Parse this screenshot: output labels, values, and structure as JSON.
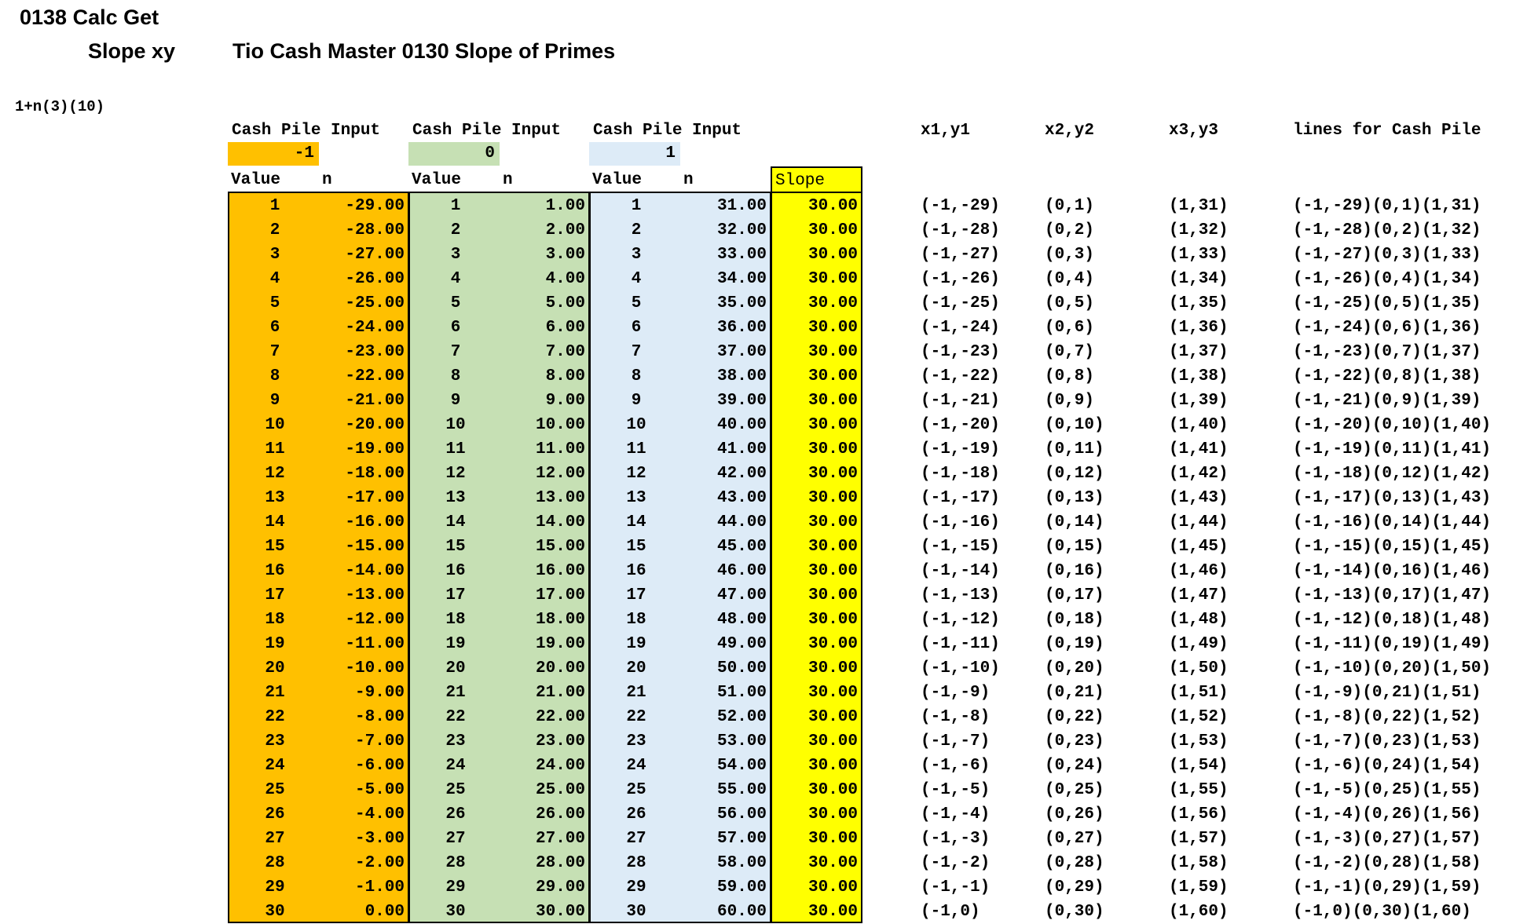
{
  "header": {
    "line1": "0138 Calc Get",
    "line2": "Slope xy",
    "line3": "Tio Cash Master 0130 Slope of Primes",
    "formula": "1+n(3)(10)"
  },
  "colors": {
    "orange": "#ffc000",
    "green": "#c6e0b4",
    "blue": "#ddebf7",
    "yellow": "#ffff00"
  },
  "inputs": [
    {
      "label": "Cash Pile Input",
      "value": "-1"
    },
    {
      "label": "Cash Pile Input",
      "value": "0"
    },
    {
      "label": "Cash Pile Input",
      "value": "1"
    }
  ],
  "subheaders": {
    "value": "Value",
    "n": "n",
    "slope": "Slope"
  },
  "point_headers": {
    "p1": "x1,y1",
    "p2": "x2,y2",
    "p3": "x3,y3",
    "lines": "lines for Cash Pile"
  },
  "rows": [
    {
      "v": "1",
      "n1": "-29.00",
      "n2": "1.00",
      "n3": "31.00",
      "s": "30.00",
      "p1": "(-1,-29)",
      "p2": "(0,1)",
      "p3": "(1,31)",
      "line": "(-1,-29)(0,1)(1,31)"
    },
    {
      "v": "2",
      "n1": "-28.00",
      "n2": "2.00",
      "n3": "32.00",
      "s": "30.00",
      "p1": "(-1,-28)",
      "p2": "(0,2)",
      "p3": "(1,32)",
      "line": "(-1,-28)(0,2)(1,32)"
    },
    {
      "v": "3",
      "n1": "-27.00",
      "n2": "3.00",
      "n3": "33.00",
      "s": "30.00",
      "p1": "(-1,-27)",
      "p2": "(0,3)",
      "p3": "(1,33)",
      "line": "(-1,-27)(0,3)(1,33)"
    },
    {
      "v": "4",
      "n1": "-26.00",
      "n2": "4.00",
      "n3": "34.00",
      "s": "30.00",
      "p1": "(-1,-26)",
      "p2": "(0,4)",
      "p3": "(1,34)",
      "line": "(-1,-26)(0,4)(1,34)"
    },
    {
      "v": "5",
      "n1": "-25.00",
      "n2": "5.00",
      "n3": "35.00",
      "s": "30.00",
      "p1": "(-1,-25)",
      "p2": "(0,5)",
      "p3": "(1,35)",
      "line": "(-1,-25)(0,5)(1,35)"
    },
    {
      "v": "6",
      "n1": "-24.00",
      "n2": "6.00",
      "n3": "36.00",
      "s": "30.00",
      "p1": "(-1,-24)",
      "p2": "(0,6)",
      "p3": "(1,36)",
      "line": "(-1,-24)(0,6)(1,36)"
    },
    {
      "v": "7",
      "n1": "-23.00",
      "n2": "7.00",
      "n3": "37.00",
      "s": "30.00",
      "p1": "(-1,-23)",
      "p2": "(0,7)",
      "p3": "(1,37)",
      "line": "(-1,-23)(0,7)(1,37)"
    },
    {
      "v": "8",
      "n1": "-22.00",
      "n2": "8.00",
      "n3": "38.00",
      "s": "30.00",
      "p1": "(-1,-22)",
      "p2": "(0,8)",
      "p3": "(1,38)",
      "line": "(-1,-22)(0,8)(1,38)"
    },
    {
      "v": "9",
      "n1": "-21.00",
      "n2": "9.00",
      "n3": "39.00",
      "s": "30.00",
      "p1": "(-1,-21)",
      "p2": "(0,9)",
      "p3": "(1,39)",
      "line": "(-1,-21)(0,9)(1,39)"
    },
    {
      "v": "10",
      "n1": "-20.00",
      "n2": "10.00",
      "n3": "40.00",
      "s": "30.00",
      "p1": "(-1,-20)",
      "p2": "(0,10)",
      "p3": "(1,40)",
      "line": "(-1,-20)(0,10)(1,40)"
    },
    {
      "v": "11",
      "n1": "-19.00",
      "n2": "11.00",
      "n3": "41.00",
      "s": "30.00",
      "p1": "(-1,-19)",
      "p2": "(0,11)",
      "p3": "(1,41)",
      "line": "(-1,-19)(0,11)(1,41)"
    },
    {
      "v": "12",
      "n1": "-18.00",
      "n2": "12.00",
      "n3": "42.00",
      "s": "30.00",
      "p1": "(-1,-18)",
      "p2": "(0,12)",
      "p3": "(1,42)",
      "line": "(-1,-18)(0,12)(1,42)"
    },
    {
      "v": "13",
      "n1": "-17.00",
      "n2": "13.00",
      "n3": "43.00",
      "s": "30.00",
      "p1": "(-1,-17)",
      "p2": "(0,13)",
      "p3": "(1,43)",
      "line": "(-1,-17)(0,13)(1,43)"
    },
    {
      "v": "14",
      "n1": "-16.00",
      "n2": "14.00",
      "n3": "44.00",
      "s": "30.00",
      "p1": "(-1,-16)",
      "p2": "(0,14)",
      "p3": "(1,44)",
      "line": "(-1,-16)(0,14)(1,44)"
    },
    {
      "v": "15",
      "n1": "-15.00",
      "n2": "15.00",
      "n3": "45.00",
      "s": "30.00",
      "p1": "(-1,-15)",
      "p2": "(0,15)",
      "p3": "(1,45)",
      "line": "(-1,-15)(0,15)(1,45)"
    },
    {
      "v": "16",
      "n1": "-14.00",
      "n2": "16.00",
      "n3": "46.00",
      "s": "30.00",
      "p1": "(-1,-14)",
      "p2": "(0,16)",
      "p3": "(1,46)",
      "line": "(-1,-14)(0,16)(1,46)"
    },
    {
      "v": "17",
      "n1": "-13.00",
      "n2": "17.00",
      "n3": "47.00",
      "s": "30.00",
      "p1": "(-1,-13)",
      "p2": "(0,17)",
      "p3": "(1,47)",
      "line": "(-1,-13)(0,17)(1,47)"
    },
    {
      "v": "18",
      "n1": "-12.00",
      "n2": "18.00",
      "n3": "48.00",
      "s": "30.00",
      "p1": "(-1,-12)",
      "p2": "(0,18)",
      "p3": "(1,48)",
      "line": "(-1,-12)(0,18)(1,48)"
    },
    {
      "v": "19",
      "n1": "-11.00",
      "n2": "19.00",
      "n3": "49.00",
      "s": "30.00",
      "p1": "(-1,-11)",
      "p2": "(0,19)",
      "p3": "(1,49)",
      "line": "(-1,-11)(0,19)(1,49)"
    },
    {
      "v": "20",
      "n1": "-10.00",
      "n2": "20.00",
      "n3": "50.00",
      "s": "30.00",
      "p1": "(-1,-10)",
      "p2": "(0,20)",
      "p3": "(1,50)",
      "line": "(-1,-10)(0,20)(1,50)"
    },
    {
      "v": "21",
      "n1": "-9.00",
      "n2": "21.00",
      "n3": "51.00",
      "s": "30.00",
      "p1": "(-1,-9)",
      "p2": "(0,21)",
      "p3": "(1,51)",
      "line": "(-1,-9)(0,21)(1,51)"
    },
    {
      "v": "22",
      "n1": "-8.00",
      "n2": "22.00",
      "n3": "52.00",
      "s": "30.00",
      "p1": "(-1,-8)",
      "p2": "(0,22)",
      "p3": "(1,52)",
      "line": "(-1,-8)(0,22)(1,52)"
    },
    {
      "v": "23",
      "n1": "-7.00",
      "n2": "23.00",
      "n3": "53.00",
      "s": "30.00",
      "p1": "(-1,-7)",
      "p2": "(0,23)",
      "p3": "(1,53)",
      "line": "(-1,-7)(0,23)(1,53)"
    },
    {
      "v": "24",
      "n1": "-6.00",
      "n2": "24.00",
      "n3": "54.00",
      "s": "30.00",
      "p1": "(-1,-6)",
      "p2": "(0,24)",
      "p3": "(1,54)",
      "line": "(-1,-6)(0,24)(1,54)"
    },
    {
      "v": "25",
      "n1": "-5.00",
      "n2": "25.00",
      "n3": "55.00",
      "s": "30.00",
      "p1": "(-1,-5)",
      "p2": "(0,25)",
      "p3": "(1,55)",
      "line": "(-1,-5)(0,25)(1,55)"
    },
    {
      "v": "26",
      "n1": "-4.00",
      "n2": "26.00",
      "n3": "56.00",
      "s": "30.00",
      "p1": "(-1,-4)",
      "p2": "(0,26)",
      "p3": "(1,56)",
      "line": "(-1,-4)(0,26)(1,56)"
    },
    {
      "v": "27",
      "n1": "-3.00",
      "n2": "27.00",
      "n3": "57.00",
      "s": "30.00",
      "p1": "(-1,-3)",
      "p2": "(0,27)",
      "p3": "(1,57)",
      "line": "(-1,-3)(0,27)(1,57)"
    },
    {
      "v": "28",
      "n1": "-2.00",
      "n2": "28.00",
      "n3": "58.00",
      "s": "30.00",
      "p1": "(-1,-2)",
      "p2": "(0,28)",
      "p3": "(1,58)",
      "line": "(-1,-2)(0,28)(1,58)"
    },
    {
      "v": "29",
      "n1": "-1.00",
      "n2": "29.00",
      "n3": "59.00",
      "s": "30.00",
      "p1": "(-1,-1)",
      "p2": "(0,29)",
      "p3": "(1,59)",
      "line": "(-1,-1)(0,29)(1,59)"
    },
    {
      "v": "30",
      "n1": "0.00",
      "n2": "30.00",
      "n3": "60.00",
      "s": "30.00",
      "p1": "(-1,0)",
      "p2": "(0,30)",
      "p3": "(1,60)",
      "line": "(-1,0)(0,30)(1,60)"
    }
  ]
}
